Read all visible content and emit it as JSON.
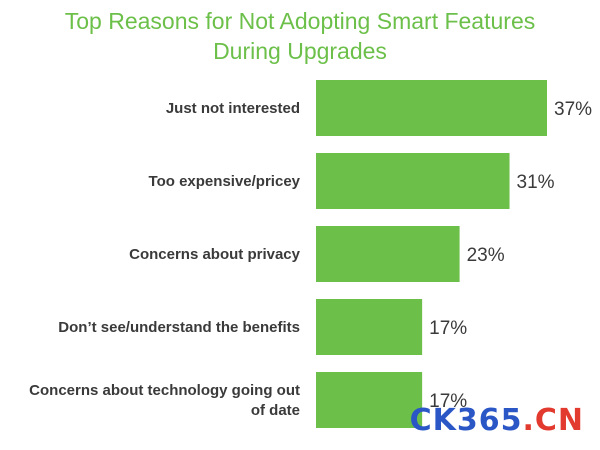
{
  "chart_data": {
    "type": "bar",
    "orientation": "horizontal",
    "title_lines": [
      "Top Reasons for Not Adopting Smart Features",
      "During Upgrades"
    ],
    "categories": [
      [
        "Just not interested"
      ],
      [
        "Too expensive/pricey"
      ],
      [
        "Concerns about privacy"
      ],
      [
        "Don’t see/understand the benefits"
      ],
      [
        "Concerns about technology going out",
        "of date"
      ]
    ],
    "values": [
      37,
      31,
      23,
      17,
      17
    ],
    "value_labels": [
      "37%",
      "31%",
      "23%",
      "17%",
      "17%"
    ],
    "xlim": [
      0,
      37
    ],
    "grid": false,
    "legend": "none",
    "bar_color": "#6cc04a",
    "title_color": "#6cc04a",
    "text_color": "#3a3a3a"
  },
  "watermark": {
    "part1": "CK365",
    "part2": ".CN"
  }
}
